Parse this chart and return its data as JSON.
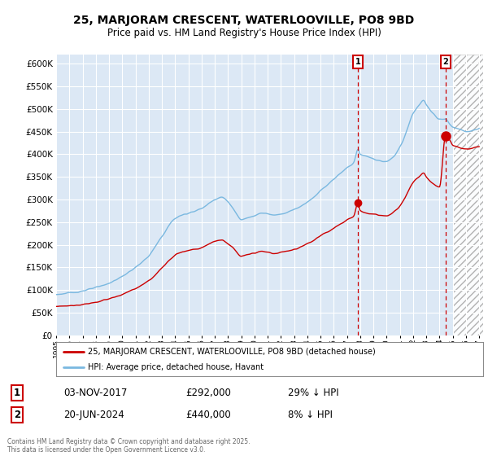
{
  "title": "25, MARJORAM CRESCENT, WATERLOOVILLE, PO8 9BD",
  "subtitle": "Price paid vs. HM Land Registry's House Price Index (HPI)",
  "ylim": [
    0,
    620000
  ],
  "yticks": [
    0,
    50000,
    100000,
    150000,
    200000,
    250000,
    300000,
    350000,
    400000,
    450000,
    500000,
    550000,
    600000
  ],
  "background_color": "#ffffff",
  "plot_bg_color": "#dce8f5",
  "grid_color": "#ffffff",
  "hpi_color": "#7ab8e0",
  "price_color": "#cc0000",
  "point1_year": 2017.84,
  "point1_price": 292000,
  "point1_date": "03-NOV-2017",
  "point1_label": "29% ↓ HPI",
  "point2_year": 2024.46,
  "point2_price": 440000,
  "point2_date": "20-JUN-2024",
  "point2_label": "8% ↓ HPI",
  "legend_label1": "25, MARJORAM CRESCENT, WATERLOOVILLE, PO8 9BD (detached house)",
  "legend_label2": "HPI: Average price, detached house, Havant",
  "footer": "Contains HM Land Registry data © Crown copyright and database right 2025.\nThis data is licensed under the Open Government Licence v3.0.",
  "hatch_start": 2025.0,
  "xmin": 1995,
  "xmax": 2027.3
}
